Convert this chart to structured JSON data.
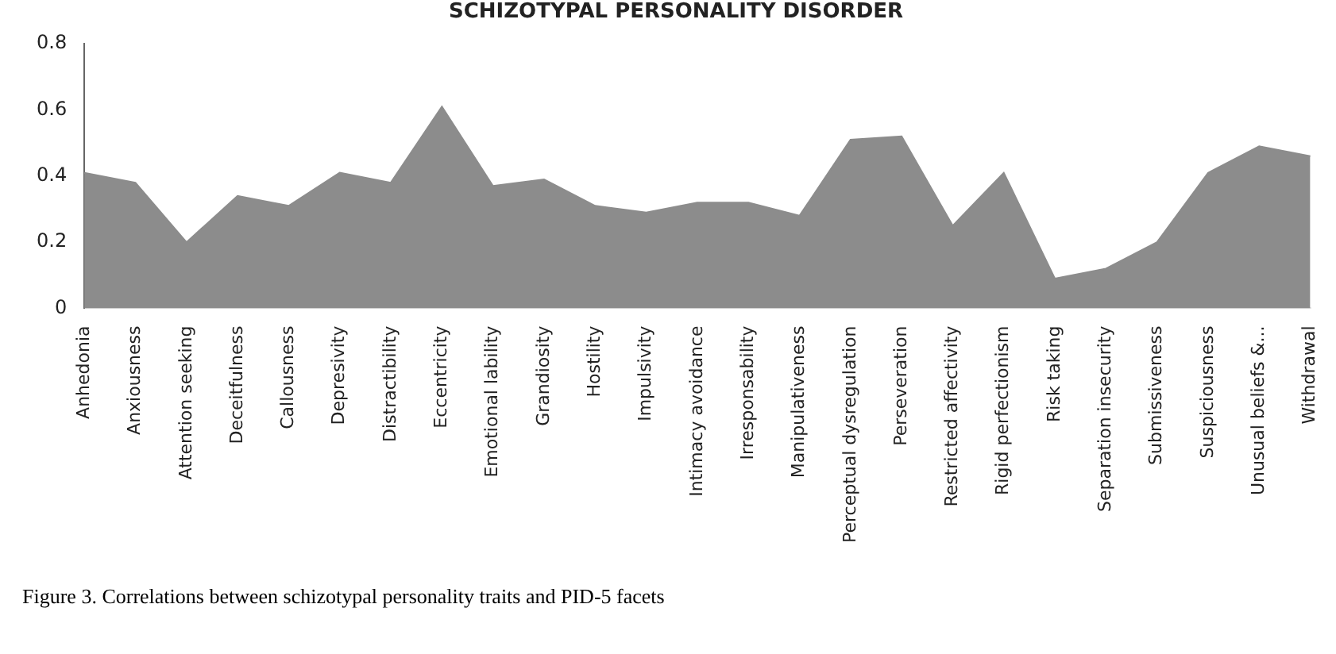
{
  "chart_data": {
    "type": "area",
    "title": "SCHIZOTYPAL PERSONALITY DISORDER",
    "categories": [
      "Anhedonia",
      "Anxiousness",
      "Attention seeking",
      "Deceitfulness",
      "Callousness",
      "Depresivity",
      "Distractibility",
      "Eccentricity",
      "Emotional lability",
      "Grandiosity",
      "Hostility",
      "Impulsivity",
      "Intimacy avoidance",
      "Irresponsability",
      "Manipulativeness",
      "Perceptual dysregulation",
      "Perseveration",
      "Restricted affectivity",
      "Rigid perfectionism",
      "Risk taking",
      "Separation insecurity",
      "Submissiveness",
      "Suspiciousness",
      "Unusual beliefs &...",
      "Withdrawal"
    ],
    "values": [
      0.41,
      0.38,
      0.2,
      0.34,
      0.31,
      0.41,
      0.38,
      0.61,
      0.37,
      0.39,
      0.31,
      0.29,
      0.32,
      0.32,
      0.28,
      0.51,
      0.52,
      0.25,
      0.41,
      0.09,
      0.12,
      0.2,
      0.41,
      0.49,
      0.46
    ],
    "color": "#8c8c8c",
    "ylim": [
      0,
      0.8
    ],
    "yticks": [
      0,
      0.2,
      0.4,
      0.6,
      0.8
    ],
    "grid": false,
    "annotations": [
      "Figure 3. Correlations between schizotypal personality traits and PID-5 facets"
    ]
  }
}
